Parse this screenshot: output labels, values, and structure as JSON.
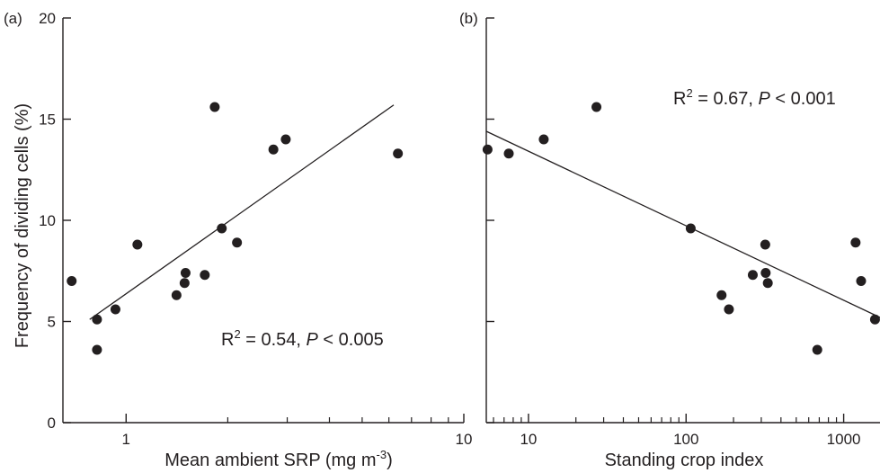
{
  "figure": {
    "ylabel": "Frequency of dividing cells (%)"
  },
  "chart_data": [
    {
      "type": "scatter",
      "panel_label": "(a)",
      "xlabel_text": "Mean ambient SRP (mg m",
      "xlabel_sup": "-3",
      "xlabel_close": ")",
      "ylabel": "Frequency of dividing cells (%)",
      "xscale": "log",
      "xlim": [
        0.65,
        10
      ],
      "ylim": [
        0,
        20
      ],
      "xticks": [
        1,
        10
      ],
      "xtick_labels": [
        "1",
        "10"
      ],
      "xminor": [
        2,
        3,
        4,
        5,
        6,
        7,
        8,
        9
      ],
      "yticks": [
        0,
        5,
        10,
        15,
        20
      ],
      "ytick_labels": [
        "0",
        "5",
        "10",
        "15",
        "20"
      ],
      "grid": false,
      "annotation": {
        "r2_label": "R",
        "r2_sup": "2",
        "r2_value": " = 0.54, ",
        "p_symbol": "P",
        "p_value": " < 0.005"
      },
      "points": [
        {
          "x": 0.69,
          "y": 7.0
        },
        {
          "x": 0.82,
          "y": 5.1
        },
        {
          "x": 0.82,
          "y": 3.6
        },
        {
          "x": 0.93,
          "y": 5.6
        },
        {
          "x": 1.08,
          "y": 8.8
        },
        {
          "x": 1.41,
          "y": 6.3
        },
        {
          "x": 1.49,
          "y": 6.9
        },
        {
          "x": 1.5,
          "y": 7.4
        },
        {
          "x": 1.71,
          "y": 7.3
        },
        {
          "x": 1.83,
          "y": 15.6
        },
        {
          "x": 1.92,
          "y": 9.6
        },
        {
          "x": 2.13,
          "y": 8.9
        },
        {
          "x": 2.73,
          "y": 13.5
        },
        {
          "x": 2.97,
          "y": 14.0
        },
        {
          "x": 6.38,
          "y": 13.3
        }
      ],
      "fit_line": [
        {
          "x": 0.78,
          "y": 5.1
        },
        {
          "x": 6.2,
          "y": 15.7
        }
      ]
    },
    {
      "type": "scatter",
      "panel_label": "(b)",
      "xlabel_text": "Standing crop index",
      "xscale": "log",
      "xlim": [
        5.4,
        1700
      ],
      "ylim": [
        0,
        20
      ],
      "xticks": [
        10,
        100,
        1000
      ],
      "xtick_labels": [
        "10",
        "100",
        "1000"
      ],
      "xminor": [
        6,
        7,
        8,
        9,
        20,
        30,
        40,
        50,
        60,
        70,
        80,
        90,
        200,
        300,
        400,
        500,
        600,
        700,
        800,
        900
      ],
      "yticks": [
        0,
        5,
        10,
        15,
        20
      ],
      "grid": false,
      "annotation": {
        "r2_label": "R",
        "r2_sup": "2",
        "r2_value": " = 0.67, ",
        "p_symbol": "P",
        "p_value": " < 0.001"
      },
      "points": [
        {
          "x": 5.5,
          "y": 13.5
        },
        {
          "x": 7.5,
          "y": 13.3
        },
        {
          "x": 12.5,
          "y": 14.0
        },
        {
          "x": 27,
          "y": 15.6
        },
        {
          "x": 107,
          "y": 9.6
        },
        {
          "x": 168,
          "y": 6.3
        },
        {
          "x": 187,
          "y": 5.6
        },
        {
          "x": 265,
          "y": 7.3
        },
        {
          "x": 318,
          "y": 8.8
        },
        {
          "x": 320,
          "y": 7.4
        },
        {
          "x": 330,
          "y": 6.9
        },
        {
          "x": 680,
          "y": 3.6
        },
        {
          "x": 1190,
          "y": 8.9
        },
        {
          "x": 1290,
          "y": 7.0
        },
        {
          "x": 1580,
          "y": 5.1
        }
      ],
      "fit_line": [
        {
          "x": 5.4,
          "y": 14.4
        },
        {
          "x": 1700,
          "y": 5.2
        }
      ]
    }
  ]
}
